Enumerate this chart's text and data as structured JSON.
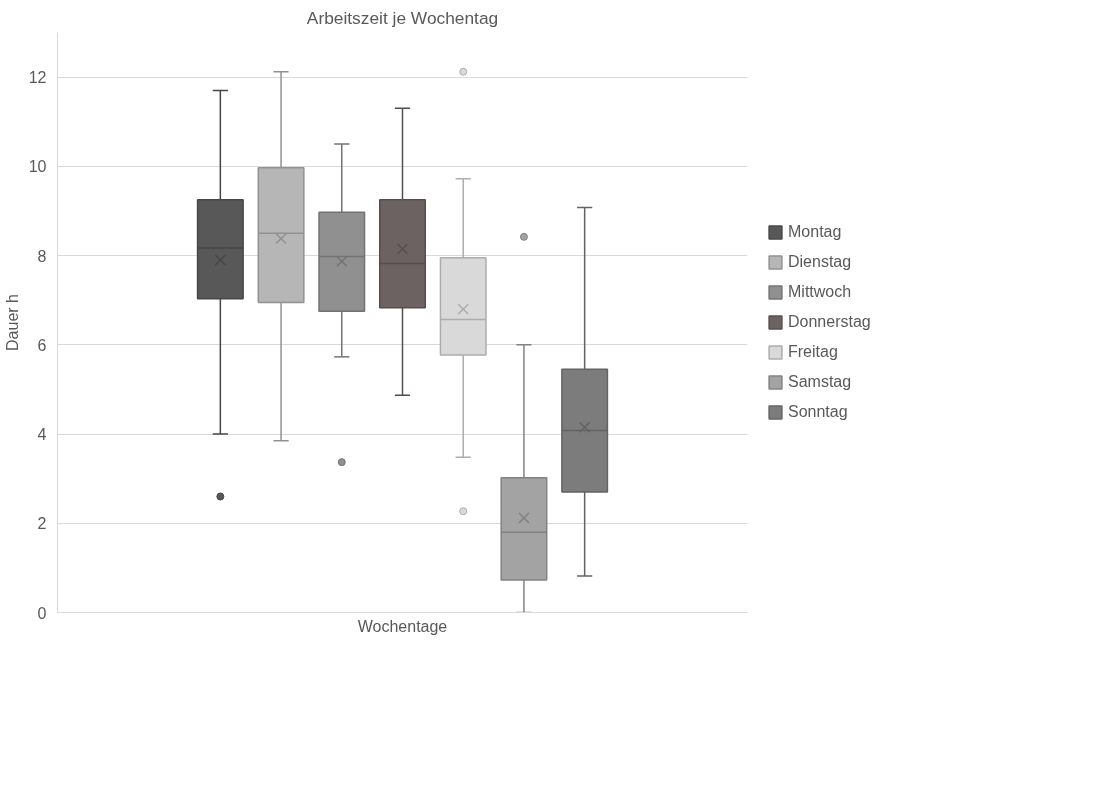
{
  "chart_data": {
    "type": "box",
    "title": "Arbeitszeit je Wochentag",
    "xlabel": "Wochentage",
    "ylabel": "Dauer h",
    "categories": [
      null
    ],
    "series": [
      {
        "name": "Montag",
        "color": "#585858",
        "boxes": [
          {
            "low": 4.0,
            "q1": 7.03,
            "median": 8.17,
            "q3": 9.25,
            "high": 11.7,
            "mean": 7.9,
            "outliers": [
              2.6
            ]
          }
        ]
      },
      {
        "name": "Dienstag",
        "color": "#b6b6b6",
        "boxes": [
          {
            "low": 3.85,
            "q1": 6.95,
            "median": 8.5,
            "q3": 9.97,
            "high": 12.12,
            "mean": 8.38
          }
        ]
      },
      {
        "name": "Mittwoch",
        "color": "#909090",
        "boxes": [
          {
            "low": 5.73,
            "q1": 6.75,
            "median": 7.98,
            "q3": 8.97,
            "high": 10.5,
            "mean": 7.87,
            "outliers": [
              3.37
            ]
          }
        ]
      },
      {
        "name": "Donnerstag",
        "color": "#6c6262",
        "boxes": [
          {
            "low": 4.87,
            "q1": 6.83,
            "median": 7.82,
            "q3": 9.25,
            "high": 11.3,
            "mean": 8.15
          }
        ]
      },
      {
        "name": "Freitag",
        "color": "#d9d9d9",
        "boxes": [
          {
            "low": 3.48,
            "q1": 5.77,
            "median": 6.57,
            "q3": 7.95,
            "high": 9.72,
            "mean": 6.8,
            "outliers": [
              2.27,
              12.12
            ]
          }
        ]
      },
      {
        "name": "Samstag",
        "color": "#a3a3a3",
        "boxes": [
          {
            "low": 0,
            "q1": 0.73,
            "median": 1.8,
            "q3": 3.02,
            "high": 6.0,
            "mean": 2.12,
            "outliers": [
              8.42
            ]
          }
        ]
      },
      {
        "name": "Sonntag",
        "color": "#7c7c7c",
        "boxes": [
          {
            "low": 0.82,
            "q1": 2.7,
            "median": 4.08,
            "q3": 5.45,
            "high": 9.08,
            "mean": 4.15
          }
        ]
      }
    ],
    "ylim": [
      0,
      13
    ],
    "yticks": [
      0,
      2,
      4,
      6,
      8,
      10,
      12
    ],
    "grid": "y",
    "legend": "right"
  }
}
